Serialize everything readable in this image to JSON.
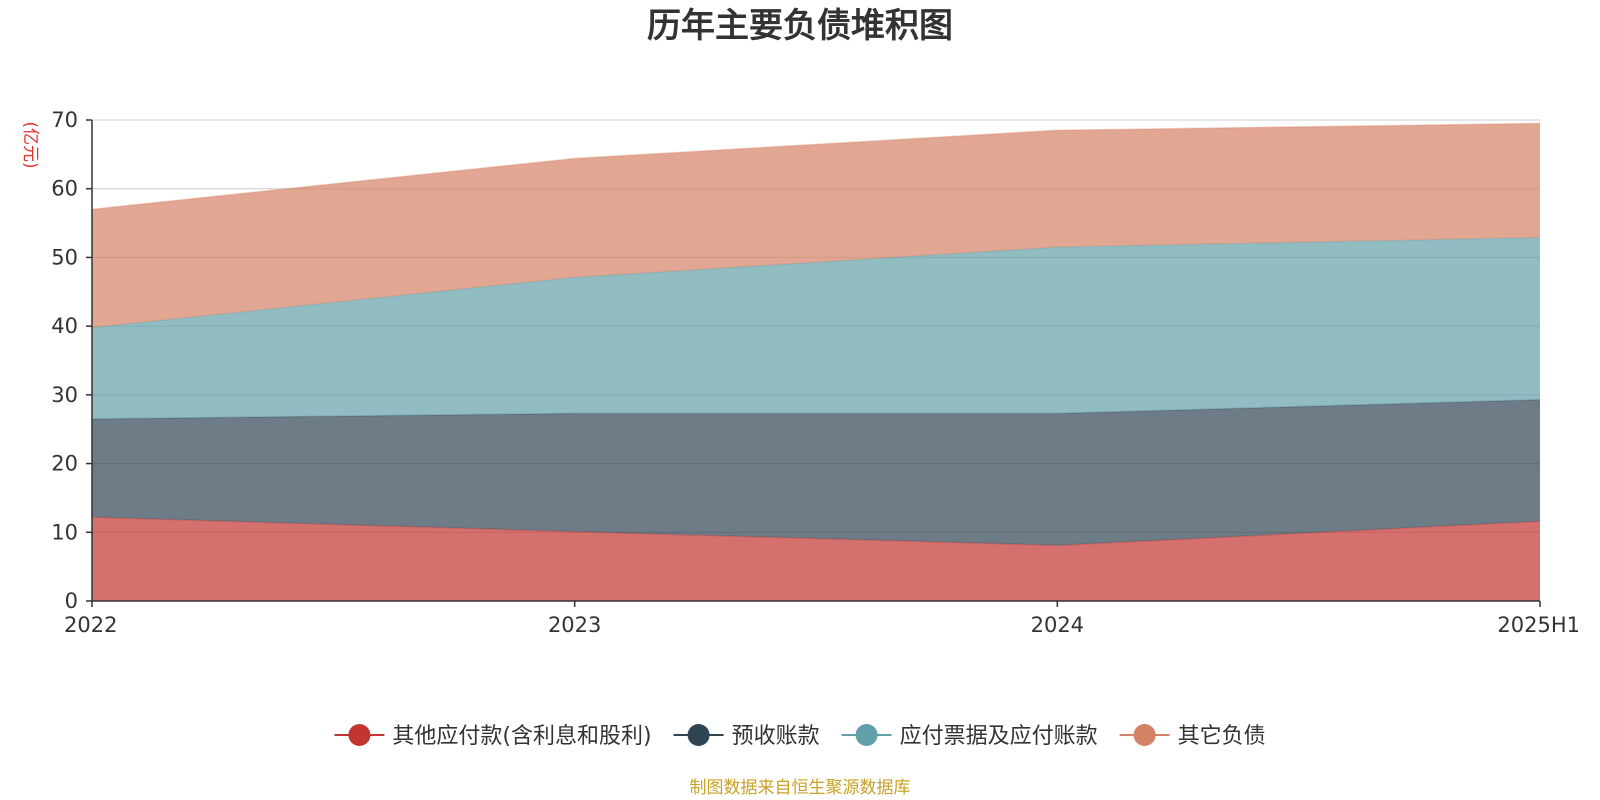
{
  "chart_data": {
    "type": "area",
    "stacked": true,
    "title": "历年主要负债堆积图",
    "unit_label": "(亿元)",
    "categories": [
      "2022",
      "2023",
      "2024",
      "2025H1"
    ],
    "ylim": [
      0,
      70
    ],
    "yticks": [
      0,
      10,
      20,
      30,
      40,
      50,
      60,
      70
    ],
    "grid": true,
    "legend_position": "bottom",
    "series": [
      {
        "name": "其他应付款(含利息和股利)",
        "color": "#c23531",
        "values": [
          12.2,
          10.1,
          8.1,
          11.6
        ]
      },
      {
        "name": "预收账款",
        "color": "#2f4554",
        "values": [
          14.3,
          17.2,
          19.2,
          17.7
        ]
      },
      {
        "name": "应付票据及应付账款",
        "color": "#61a0a8",
        "values": [
          13.3,
          19.8,
          24.2,
          23.6
        ]
      },
      {
        "name": "其它负债",
        "color": "#d48265",
        "values": [
          17.2,
          17.3,
          17.0,
          16.6
        ]
      }
    ]
  },
  "source_note": "制图数据来自恒生聚源数据库"
}
